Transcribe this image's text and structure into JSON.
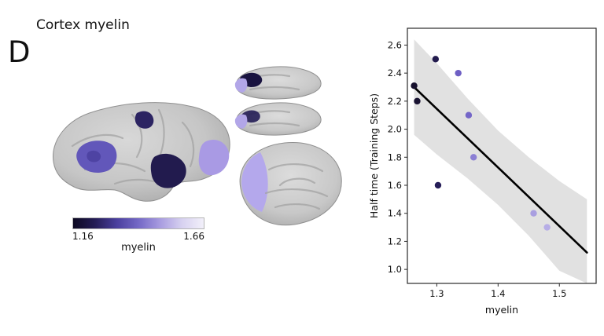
{
  "panel": {
    "label": "D"
  },
  "header": {
    "title": "Cortex myelin"
  },
  "colorbar": {
    "min_label": "1.16",
    "max_label": "1.66",
    "axis_label": "myelin",
    "colors": [
      "#0d0921",
      "#241c55",
      "#4a3f9e",
      "#7468c6",
      "#a89ce0",
      "#d7d1f0",
      "#f2f0fa"
    ]
  },
  "chart_data": {
    "type": "scatter",
    "title": "",
    "xlabel": "myelin",
    "ylabel": "Half time (Training Steps)",
    "xlim": [
      1.252,
      1.56
    ],
    "ylim": [
      0.9,
      2.72
    ],
    "xticks": [
      1.3,
      1.4,
      1.5
    ],
    "yticks": [
      1.0,
      1.2,
      1.4,
      1.6,
      1.8,
      2.0,
      2.2,
      2.4,
      2.6
    ],
    "grid": false,
    "legend": null,
    "points": [
      {
        "x": 1.263,
        "y": 2.31,
        "color": "#17112e"
      },
      {
        "x": 1.268,
        "y": 2.2,
        "color": "#1a1433"
      },
      {
        "x": 1.298,
        "y": 2.5,
        "color": "#221b4e"
      },
      {
        "x": 1.302,
        "y": 1.6,
        "color": "#261e58"
      },
      {
        "x": 1.335,
        "y": 2.4,
        "color": "#6e5fc4"
      },
      {
        "x": 1.352,
        "y": 2.1,
        "color": "#7466c8"
      },
      {
        "x": 1.36,
        "y": 1.8,
        "color": "#8b7fd4"
      },
      {
        "x": 1.458,
        "y": 1.4,
        "color": "#a99fe0"
      },
      {
        "x": 1.48,
        "y": 1.3,
        "color": "#b6ade6"
      }
    ],
    "trend": {
      "x": [
        1.263,
        1.545
      ],
      "y": [
        2.3,
        1.12
      ],
      "color": "#000000"
    },
    "band": {
      "x": [
        1.263,
        1.3,
        1.35,
        1.4,
        1.45,
        1.5,
        1.545
      ],
      "upper": [
        2.64,
        2.47,
        2.22,
        1.99,
        1.8,
        1.63,
        1.5
      ],
      "lower": [
        1.96,
        1.82,
        1.65,
        1.46,
        1.24,
        0.99,
        0.74
      ],
      "color": "#c9c9c9",
      "opacity": 0.55
    }
  }
}
